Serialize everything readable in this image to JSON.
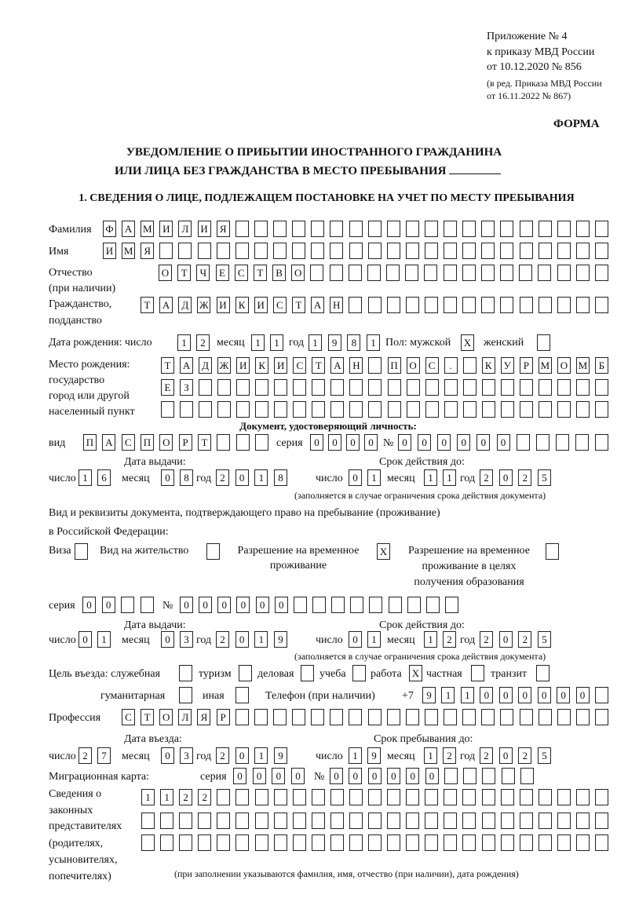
{
  "header": {
    "appendix": "Приложение № 4",
    "order": "к приказу МВД России",
    "order_date": "от 10.12.2020 № 856",
    "revision_1": "(в ред. Приказа МВД России",
    "revision_2": "от 16.11.2022 № 867)",
    "form_label": "ФОРМА",
    "title_1": "УВЕДОМЛЕНИЕ О ПРИБЫТИИ ИНОСТРАННОГО ГРАЖДАНИНА",
    "title_2": "ИЛИ ЛИЦА БЕЗ ГРАЖДАНСТВА В МЕСТО ПРЕБЫВАНИЯ",
    "section_1": "1. СВЕДЕНИЯ О ЛИЦЕ, ПОДЛЕЖАЩЕМ ПОСТАНОВКЕ НА УЧЕТ ПО МЕСТУ ПРЕБЫВАНИЯ"
  },
  "labels": {
    "surname": "Фамилия",
    "name": "Имя",
    "patronymic": "Отчество",
    "patronymic_note": "(при наличии)",
    "citizenship_1": "Гражданство,",
    "citizenship_2": "подданство",
    "birth_date": "Дата рождения:  число",
    "day": "число",
    "month": "месяц",
    "year": "год",
    "sex": "Пол: мужской",
    "female": "женский",
    "birthplace_1": "Место рождения:",
    "birthplace_2": "государство",
    "birthplace_3": "город или другой",
    "birthplace_4": "населенный пункт",
    "id_doc": "Документ, удостоверяющий личность:",
    "kind": "вид",
    "series": "серия",
    "number": "№",
    "issue_date": "Дата выдачи:",
    "valid_until": "Срок действия до:",
    "validity_note": "(заполняется в случае ограничения срока действия документа)",
    "right_doc_1": "Вид и реквизиты документа, подтверждающего право на пребывание (проживание)",
    "right_doc_2": "в Российской Федерации:",
    "visa": "Виза",
    "residence": "Вид на жительство",
    "temp_permit_1": "Разрешение на временное",
    "temp_permit_2": "проживание",
    "edu_permit_1": "Разрешение на временное",
    "edu_permit_2": "проживание в целях",
    "edu_permit_3": "получения образования",
    "purpose": "Цель въезда: служебная",
    "tourism": "туризм",
    "business": "деловая",
    "study": "учеба",
    "work": "работа",
    "private": "частная",
    "transit": "транзит",
    "humanitarian": "гуманитарная",
    "other": "иная",
    "phone": "Телефон (при наличии)",
    "phone_prefix": "+7",
    "profession": "Профессия",
    "entry_date": "Дата въезда:",
    "stay_until": "Срок пребывания до:",
    "migration_card": "Миграционная карта:",
    "rep_1": "Сведения о",
    "rep_2": "законных",
    "rep_3": "представителях",
    "rep_4": "(родителях,",
    "rep_5": "усыновителях,",
    "rep_6": "попечителях)",
    "rep_note": "(при заполнении указываются фамилия, имя, отчество (при наличии), дата рождения)"
  },
  "values": {
    "surname": "ФАМИЛИЯ",
    "name": "ИМЯ",
    "patronymic": "ОТЧЕСТВО",
    "citizenship": "ТАДЖИКИСТАН",
    "birth_day": "12",
    "birth_month": "11",
    "birth_year": "1981",
    "sex_male": "X",
    "sex_female": "",
    "birthplace_1": "ТАДЖИКИСТАН ПОС. КУРМОМБ",
    "birthplace_2": "ЕЗ",
    "birthplace_3": "",
    "id_kind": "ПАСПОРТ",
    "id_series": "0000",
    "id_number": "000000",
    "id_issue_day": "16",
    "id_issue_month": "08",
    "id_issue_year": "2018",
    "id_valid_day": "01",
    "id_valid_month": "11",
    "id_valid_year": "2025",
    "visa": "",
    "residence": "",
    "temp_permit": "X",
    "edu_permit": "",
    "rd_series": "00",
    "rd_number": "000000",
    "rd_issue_day": "01",
    "rd_issue_month": "03",
    "rd_issue_year": "2019",
    "rd_valid_day": "01",
    "rd_valid_month": "12",
    "rd_valid_year": "2025",
    "purpose_official": "",
    "purpose_tourism": "",
    "purpose_business": "",
    "purpose_study": "",
    "purpose_work": "X",
    "purpose_private": "",
    "purpose_transit": "",
    "purpose_humanitarian": "",
    "purpose_other": "",
    "phone": "911000000",
    "profession": "СТОЛЯР",
    "entry_day": "27",
    "entry_month": "03",
    "entry_year": "2019",
    "stay_day": "19",
    "stay_month": "12",
    "stay_year": "2025",
    "mc_series": "0000",
    "mc_number": "000000",
    "rep_1": "1122",
    "rep_2": "",
    "rep_3": ""
  }
}
